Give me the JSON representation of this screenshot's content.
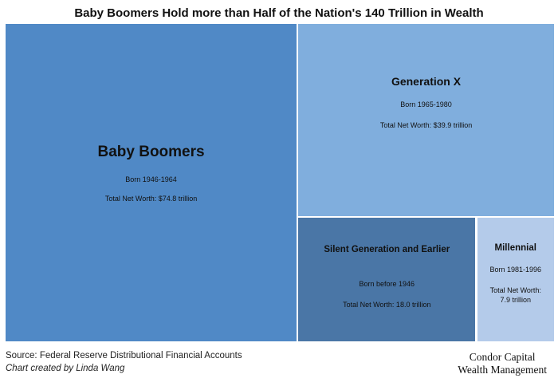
{
  "title": "Baby Boomers Hold more than Half of the Nation's 140 Trillion in Wealth",
  "chart_data": {
    "type": "treemap",
    "title": "Baby Boomers Hold more than Half of the Nation's 140 Trillion in Wealth",
    "unit": "trillion",
    "total": 140,
    "items": [
      {
        "name": "Baby Boomers",
        "born": "Born 1946-1964",
        "net_worth_label": "Total Net Worth: $74.8 trillion",
        "value": 74.8,
        "color": "#5089c6"
      },
      {
        "name": "Generation X",
        "born": "Born 1965-1980",
        "net_worth_label": "Total Net Worth: $39.9 trillion",
        "value": 39.9,
        "color": "#80aedd"
      },
      {
        "name": "Silent Generation and Earlier",
        "born": "Born before 1946",
        "net_worth_label": "Total Net Worth: 18.0 trillion",
        "value": 18.0,
        "color": "#4a76a6"
      },
      {
        "name": "Millennial",
        "born": "Born 1981-1996",
        "net_worth_label": "Total Net Worth: 7.9 trillion",
        "value": 7.9,
        "color": "#b4cbea"
      }
    ]
  },
  "footer": {
    "source": "Source: Federal Reserve Distributional Financial Accounts",
    "credit": "Chart created by Linda Wang",
    "brand_line1": "Condor Capital",
    "brand_line2": "Wealth Management"
  }
}
